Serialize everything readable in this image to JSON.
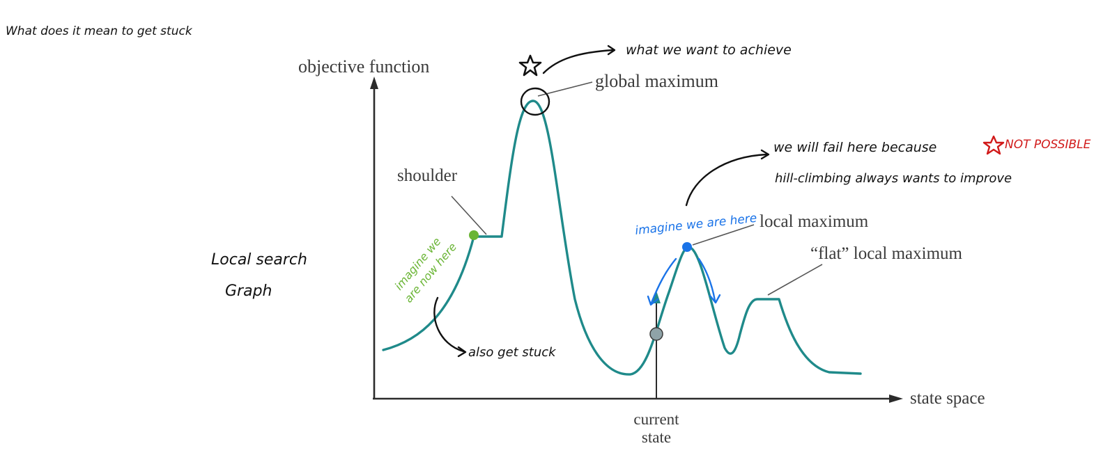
{
  "notes": {
    "top_left": "What does it mean to get stuck",
    "side_label_line1": "Local search",
    "side_label_line2": "Graph"
  },
  "axes": {
    "y_label": "objective function",
    "x_label": "state space"
  },
  "labels": {
    "global_maximum": "global maximum",
    "shoulder": "shoulder",
    "local_maximum": "local maximum",
    "flat_local_maximum": "“flat” local maximum",
    "current_state_line1": "current",
    "current_state_line2": "state"
  },
  "annotations": {
    "want_to_achieve": "what we want to achieve",
    "fail_line1": "we will fail here because",
    "fail_line2": "hill-climbing always wants to improve",
    "not_possible": "NOT POSSIBLE",
    "imagine_blue": "imagine we are here",
    "imagine_green_line1": "imagine we",
    "imagine_green_line2": "are now here",
    "also_stuck": "also get stuck"
  },
  "colors": {
    "curve": "#1f8a8a",
    "green": "#6ab535",
    "blue": "#1a73e8",
    "red": "#d11a1a",
    "current_state_dot": "#8fa3a8"
  },
  "icons": {
    "star": "star-icon",
    "red_star": "red-star-icon"
  }
}
